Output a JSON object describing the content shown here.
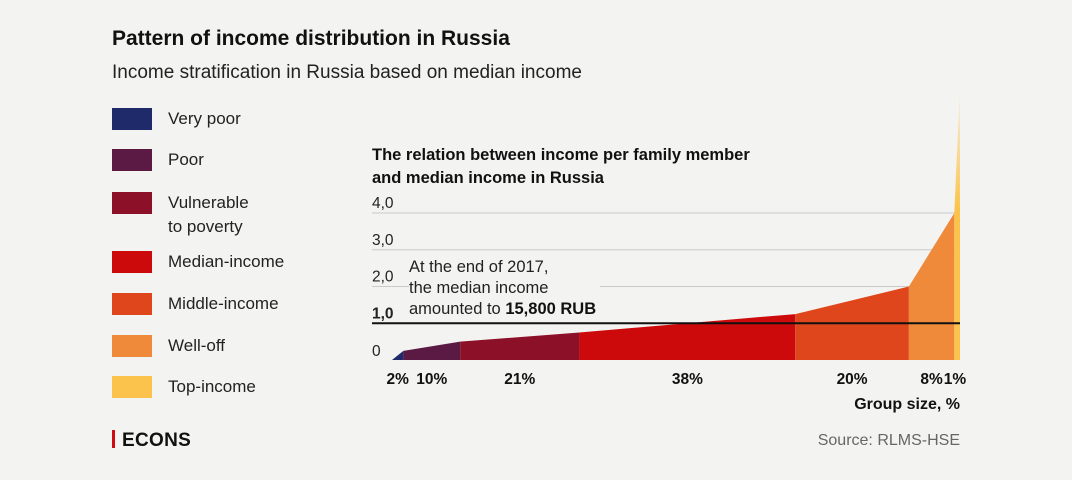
{
  "title": "Pattern of income distribution in Russia",
  "subtitle": "Income stratification in Russia based on median income",
  "legend": [
    {
      "label": "Very poor",
      "color": "#1f2a6b"
    },
    {
      "label": "Poor",
      "color": "#5b1a44"
    },
    {
      "label": "Vulnerable\nto poverty",
      "color": "#8c1028"
    },
    {
      "label": "Median-income",
      "color": "#cc0a0c"
    },
    {
      "label": "Middle-income",
      "color": "#e0461c"
    },
    {
      "label": "Well-off",
      "color": "#ef8a3a"
    },
    {
      "label": "Top-income",
      "color": "#fcc34c"
    }
  ],
  "annotation": {
    "line1": "At the end of 2017,",
    "line2": "the median income",
    "line3_prefix": "amounted to ",
    "line3_value": "15,800 RUB"
  },
  "footer": {
    "logo": "ECONS",
    "source": "Source: RLMS-HSE"
  },
  "chart_data": {
    "type": "area",
    "title": "The relation between income per family member and median income in Russia",
    "xlabel": "Group size, %",
    "ylabel": "",
    "ylim": [
      0,
      4
    ],
    "yticks": [
      "0",
      "1,0",
      "2,0",
      "3,0",
      "4,0"
    ],
    "median_line_value": 1.0,
    "grid": true,
    "series": [
      {
        "name": "Very poor",
        "share_label": "2%",
        "share": 2,
        "y_start": 0.0,
        "y_end": 0.25,
        "color": "#1f2a6b"
      },
      {
        "name": "Poor",
        "share_label": "10%",
        "share": 10,
        "y_start": 0.25,
        "y_end": 0.5,
        "color": "#5b1a44"
      },
      {
        "name": "Vulnerable to poverty",
        "share_label": "21%",
        "share": 21,
        "y_start": 0.5,
        "y_end": 0.75,
        "color": "#8c1028"
      },
      {
        "name": "Median-income",
        "share_label": "38%",
        "share": 38,
        "y_start": 0.75,
        "y_end": 1.25,
        "color": "#cc0a0c"
      },
      {
        "name": "Middle-income",
        "share_label": "20%",
        "share": 20,
        "y_start": 1.25,
        "y_end": 2.0,
        "color": "#e0461c"
      },
      {
        "name": "Well-off",
        "share_label": "8%",
        "share": 8,
        "y_start": 2.0,
        "y_end": 4.0,
        "color": "#ef8a3a"
      },
      {
        "name": "Top-income",
        "share_label": "1%",
        "share": 1,
        "y_start": 4.0,
        "y_end": 7.5,
        "color": "#fcc34c"
      }
    ]
  }
}
